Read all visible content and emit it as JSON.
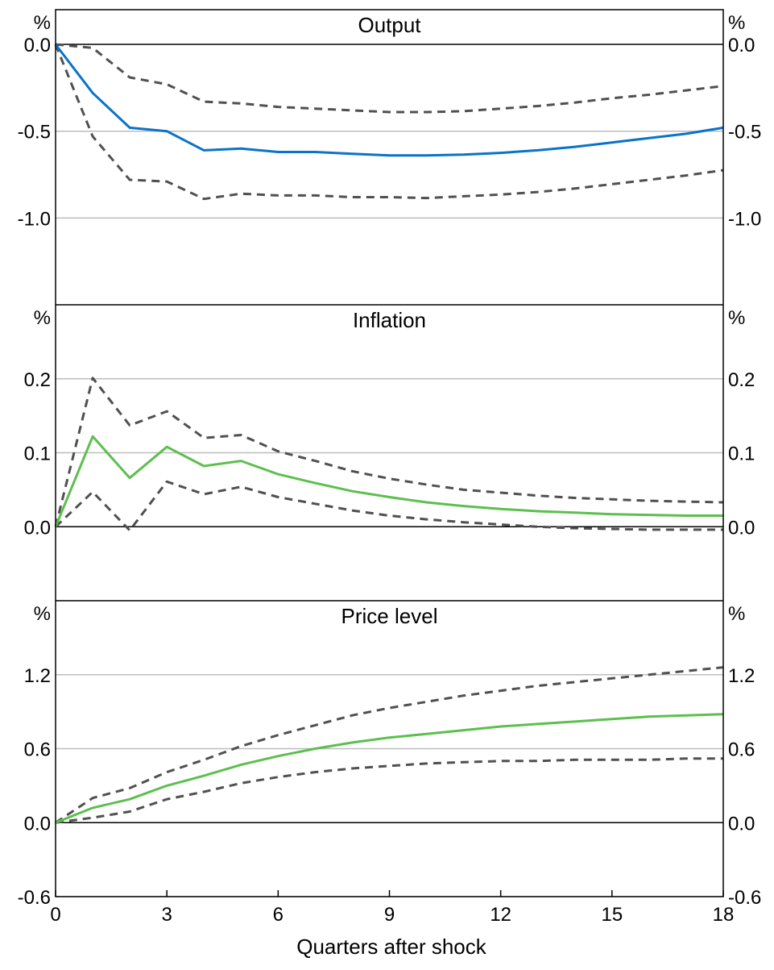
{
  "chart_data": {
    "type": "line",
    "xlabel": "Quarters after shock",
    "x_ticks": [
      "0",
      "3",
      "6",
      "9",
      "12",
      "15",
      "18"
    ],
    "xlim": [
      0,
      18
    ],
    "grid": true,
    "panels": [
      {
        "title": "Output",
        "unit": "%",
        "ylim": [
          -1.5,
          0.2
        ],
        "y_ticks": [
          "0.0",
          "-0.5",
          "-1.0"
        ],
        "y_tick_values": [
          0.0,
          -0.5,
          -1.0
        ],
        "zero_line": 0.0,
        "x": [
          0,
          1,
          2,
          3,
          4,
          5,
          6,
          7,
          8,
          9,
          10,
          11,
          12,
          13,
          14,
          15,
          16,
          17,
          18
        ],
        "series": [
          {
            "role": "estimate",
            "color": "#0a73c9",
            "dashed": false,
            "values": [
              0,
              -0.28,
              -0.48,
              -0.5,
              -0.61,
              -0.6,
              -0.62,
              -0.62,
              -0.63,
              -0.64,
              -0.64,
              -0.635,
              -0.625,
              -0.61,
              -0.59,
              -0.565,
              -0.54,
              -0.515,
              -0.48
            ]
          },
          {
            "role": "upper band",
            "color": "#505050",
            "dashed": true,
            "values": [
              0,
              -0.02,
              -0.19,
              -0.23,
              -0.33,
              -0.34,
              -0.36,
              -0.37,
              -0.38,
              -0.39,
              -0.39,
              -0.385,
              -0.37,
              -0.355,
              -0.335,
              -0.31,
              -0.29,
              -0.265,
              -0.24
            ]
          },
          {
            "role": "lower band",
            "color": "#505050",
            "dashed": true,
            "values": [
              0,
              -0.53,
              -0.78,
              -0.79,
              -0.89,
              -0.86,
              -0.87,
              -0.87,
              -0.88,
              -0.88,
              -0.885,
              -0.875,
              -0.865,
              -0.85,
              -0.83,
              -0.805,
              -0.78,
              -0.755,
              -0.725
            ]
          }
        ]
      },
      {
        "title": "Inflation",
        "unit": "%",
        "ylim": [
          -0.1,
          0.3
        ],
        "y_ticks": [
          "0.2",
          "0.1",
          "0.0"
        ],
        "y_tick_values": [
          0.2,
          0.1,
          0.0
        ],
        "zero_line": 0.0,
        "x": [
          0,
          1,
          2,
          3,
          4,
          5,
          6,
          7,
          8,
          9,
          10,
          11,
          12,
          13,
          14,
          15,
          16,
          17,
          18
        ],
        "series": [
          {
            "role": "estimate",
            "color": "#5cbf4e",
            "dashed": false,
            "values": [
              0,
              0.122,
              0.066,
              0.108,
              0.082,
              0.089,
              0.071,
              0.059,
              0.048,
              0.04,
              0.033,
              0.028,
              0.024,
              0.021,
              0.019,
              0.017,
              0.016,
              0.015,
              0.015
            ]
          },
          {
            "role": "upper band",
            "color": "#505050",
            "dashed": true,
            "values": [
              0,
              0.201,
              0.137,
              0.156,
              0.12,
              0.124,
              0.102,
              0.089,
              0.075,
              0.065,
              0.057,
              0.05,
              0.046,
              0.042,
              0.039,
              0.037,
              0.035,
              0.034,
              0.033
            ]
          },
          {
            "role": "lower band",
            "color": "#505050",
            "dashed": true,
            "values": [
              0,
              0.047,
              -0.005,
              0.061,
              0.044,
              0.054,
              0.04,
              0.031,
              0.022,
              0.015,
              0.01,
              0.006,
              0.003,
              0.0,
              -0.002,
              -0.003,
              -0.004,
              -0.004,
              -0.004
            ]
          }
        ]
      },
      {
        "title": "Price level",
        "unit": "%",
        "ylim": [
          -0.6,
          1.8
        ],
        "y_ticks": [
          "1.2",
          "0.6",
          "0.0",
          "-0.6"
        ],
        "y_tick_values": [
          1.2,
          0.6,
          0.0,
          -0.6
        ],
        "zero_line": 0.0,
        "x": [
          0,
          1,
          2,
          3,
          4,
          5,
          6,
          7,
          8,
          9,
          10,
          11,
          12,
          13,
          14,
          15,
          16,
          17,
          18
        ],
        "series": [
          {
            "role": "estimate",
            "color": "#5cbf4e",
            "dashed": false,
            "values": [
              0,
              0.12,
              0.19,
              0.3,
              0.38,
              0.47,
              0.54,
              0.6,
              0.65,
              0.69,
              0.72,
              0.75,
              0.78,
              0.8,
              0.82,
              0.84,
              0.86,
              0.87,
              0.88
            ]
          },
          {
            "role": "upper band",
            "color": "#505050",
            "dashed": true,
            "values": [
              0,
              0.2,
              0.28,
              0.41,
              0.51,
              0.62,
              0.71,
              0.79,
              0.87,
              0.93,
              0.98,
              1.03,
              1.07,
              1.11,
              1.14,
              1.17,
              1.2,
              1.23,
              1.26
            ]
          },
          {
            "role": "lower band",
            "color": "#505050",
            "dashed": true,
            "values": [
              0,
              0.04,
              0.09,
              0.19,
              0.25,
              0.32,
              0.37,
              0.41,
              0.44,
              0.46,
              0.48,
              0.49,
              0.5,
              0.5,
              0.51,
              0.51,
              0.51,
              0.52,
              0.52
            ]
          }
        ]
      }
    ]
  }
}
